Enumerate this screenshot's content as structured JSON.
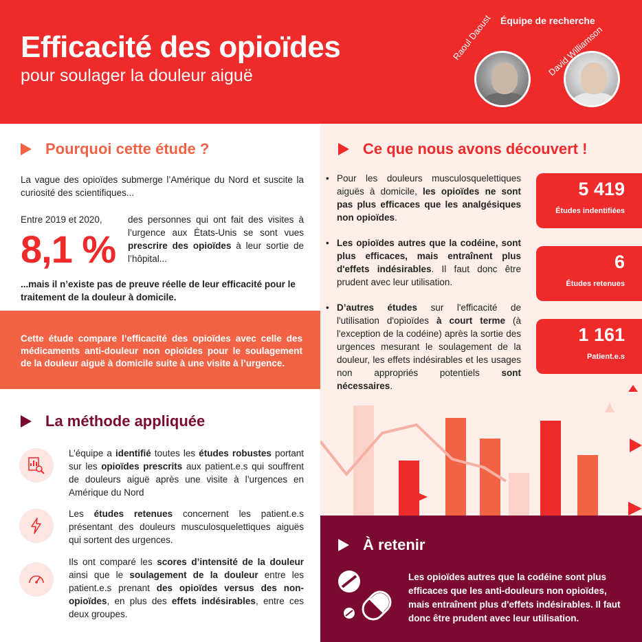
{
  "header": {
    "title": "Efficacité des opioïdes",
    "subtitle": "pour soulager la douleur aiguë",
    "team_label": "Équipe de recherche",
    "researchers": [
      "Raoul Daoust",
      "David Williamson"
    ]
  },
  "why": {
    "heading": "Pourquoi cette étude ?",
    "intro": "La vague des opioïdes submerge l’Amérique du Nord et suscite la curiosité des scientifiques...",
    "period": "Entre 2019 et 2020,",
    "percent": "8,1 %",
    "percent_text_1": "des personnes qui ont fait des visites à l’urgence aux États-Unis se sont vues ",
    "percent_text_bold": "prescrire des opioïdes",
    "percent_text_2": " à leur sortie de l’hôpital...",
    "conclusion": "...mais il n’existe pas de preuve réelle de leur efficacité pour le traitement de la douleur à domicile.",
    "band": "Cette étude compare l’efficacité des opioïdes avec celle des médicaments anti-douleur non opioïdes pour le soulagement de la douleur aiguë à domicile suite à une visite à l’urgence."
  },
  "findings": {
    "heading": "Ce que nous avons découvert !",
    "b1_pre": "Pour les douleurs musculosquelettiques aiguës à domicile, ",
    "b1_bold": "les opioïdes ne sont pas plus efficaces que les analgésiques non opioïdes",
    "b1_post": ".",
    "b2_bold": "Les opioïdes autres que la codéine, sont plus efficaces, mais entraînent plus d'effets indésirables",
    "b2_post": ". Il faut donc être prudent avec leur utilisation.",
    "b3_bold1": "D’autres études",
    "b3_mid1": " sur l'efficacité de l'utilisation d'opioïdes ",
    "b3_bold2": "à court terme",
    "b3_mid2": " (à l'exception de la codéine) après la sortie des urgences mesurant le soulagement de la douleur, les effets indésirables et les usages non appropriés potentiels ",
    "b3_bold3": "sont nécessaires",
    "b3_post": ".",
    "stats": [
      {
        "value": "5 419",
        "label": "Études indentifiées"
      },
      {
        "value": "6",
        "label": "Études retenues"
      },
      {
        "value": "1 161",
        "label": "Patient.e.s"
      }
    ]
  },
  "method": {
    "heading": "La méthode appliquée",
    "m1_a": "L’équipe a ",
    "m1_b": "identifié",
    "m1_c": " toutes les ",
    "m1_d": "études robustes",
    "m1_e": " portant sur les ",
    "m1_f": "opioïdes prescrits",
    "m1_g": " aux patient.e.s qui souffrent de douleurs aiguë après une visite à l’urgences en Amérique du Nord",
    "m2_a": "Les ",
    "m2_b": "études retenues",
    "m2_c": " concernent les patient.e.s présentant des douleurs musculosquelettiques aiguës qui sortent des urgences.",
    "m3_a": "Ils ont comparé les ",
    "m3_b": "scores d’intensité de la douleur",
    "m3_c": " ainsi que le ",
    "m3_d": "soulagement de la douleur",
    "m3_e": " entre les patient.e.s prenant ",
    "m3_f": "des opioïdes versus des non-opioïdes",
    "m3_g": ", en plus des ",
    "m3_h": "effets indésirables",
    "m3_i": ", entre ces deux groupes."
  },
  "takeaway": {
    "heading": "À retenir",
    "text": "Les opioïdes autres que la codéine sont plus efficaces que les anti-douleurs non opioïdes, mais entraînent plus d'effets indésirables. Il faut donc être prudent avec leur utilisation."
  },
  "colors": {
    "red": "#ee2a2a",
    "orange": "#f26346",
    "maroon": "#7a0a31",
    "pink_bg": "#fdeee9"
  }
}
